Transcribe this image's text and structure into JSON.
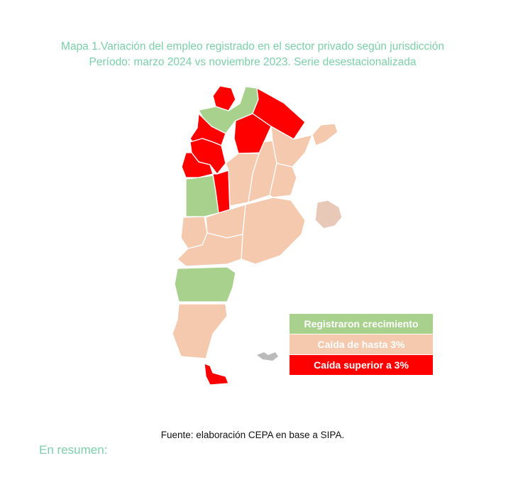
{
  "title": [
    "Mapa 1.Variación del empleo registrado en el sector privado según jurisdicción",
    "Período: marzo 2024 vs noviembre 2023. Serie desestacionalizada"
  ],
  "legend": [
    {
      "label": "Registraron crecimiento",
      "color": "#a9d18e"
    },
    {
      "label": "Caída de hasta 3%",
      "color": "#f4c9ae"
    },
    {
      "label": "Caída superior a 3%",
      "color": "#ff0000"
    }
  ],
  "source": "Fuente: elaboración CEPA en base a SIPA.",
  "next_heading": "En resumen:"
}
